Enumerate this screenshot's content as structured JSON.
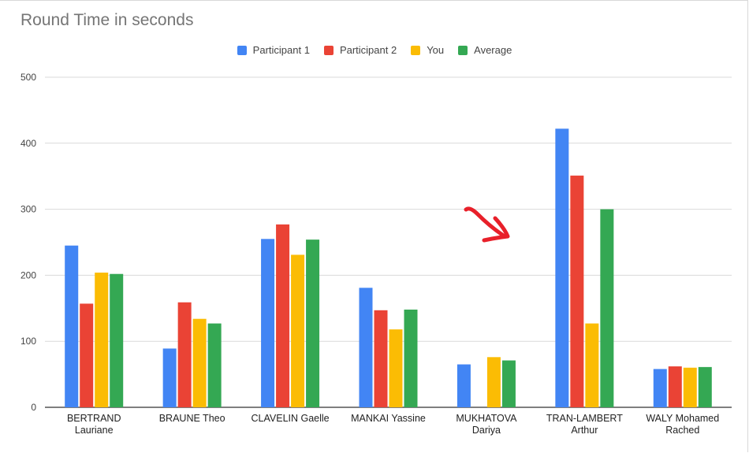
{
  "chart_data": {
    "type": "bar",
    "title": "Round Time in seconds",
    "xlabel": "",
    "ylabel": "",
    "ylim": [
      0,
      500
    ],
    "yticks": [
      0,
      100,
      200,
      300,
      400,
      500
    ],
    "grid": true,
    "legend_position": "top",
    "categories": [
      [
        "BERTRAND",
        "Lauriane"
      ],
      [
        "BRAUNE Theo"
      ],
      [
        "CLAVELIN Gaelle"
      ],
      [
        "MANKAI Yassine"
      ],
      [
        "MUKHATOVA",
        "Dariya"
      ],
      [
        "TRAN-LAMBERT",
        "Arthur"
      ],
      [
        "WALY Mohamed",
        "Rached"
      ]
    ],
    "series": [
      {
        "name": "Participant 1",
        "color": "#4285f4",
        "values": [
          245,
          89,
          255,
          181,
          65,
          422,
          58
        ]
      },
      {
        "name": "Participant 2",
        "color": "#ea4335",
        "values": [
          157,
          159,
          277,
          147,
          0,
          351,
          62
        ]
      },
      {
        "name": "You",
        "color": "#fbbc04",
        "values": [
          204,
          134,
          231,
          118,
          76,
          127,
          60
        ]
      },
      {
        "name": "Average",
        "color": "#34a853",
        "values": [
          202,
          127,
          254,
          148,
          71,
          300,
          61
        ]
      }
    ],
    "annotation": {
      "icon": "red-arrow-icon",
      "color": "#e8202a"
    }
  }
}
